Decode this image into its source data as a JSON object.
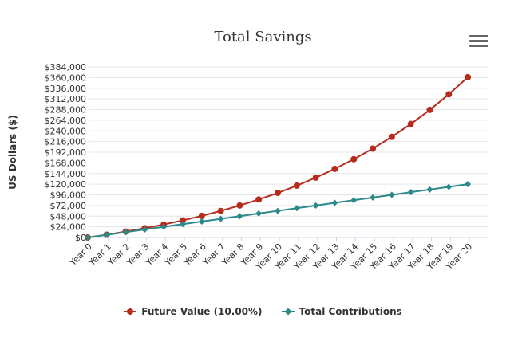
{
  "chart_data": {
    "type": "line",
    "title": "Total Savings",
    "ylabel": "US Dollars ($)",
    "xlabel": "",
    "categories": [
      "Year 0",
      "Year 1",
      "Year 2",
      "Year 3",
      "Year 4",
      "Year 5",
      "Year 6",
      "Year 7",
      "Year 8",
      "Year 9",
      "Year 10",
      "Year 11",
      "Year 12",
      "Year 13",
      "Year 14",
      "Year 15",
      "Year 16",
      "Year 17",
      "Year 18",
      "Year 19",
      "Year 20"
    ],
    "y_ticks": [
      0,
      24000,
      48000,
      72000,
      96000,
      120000,
      144000,
      168000,
      192000,
      216000,
      240000,
      264000,
      288000,
      312000,
      336000,
      360000,
      384000
    ],
    "y_tick_labels": [
      "$0",
      "$24,000",
      "$48,000",
      "$72,000",
      "$96,000",
      "$120,000",
      "$144,000",
      "$168,000",
      "$192,000",
      "$216,000",
      "$240,000",
      "$264,000",
      "$288,000",
      "$312,000",
      "$336,000",
      "$360,000",
      "$384,000"
    ],
    "ylim": [
      0,
      384000
    ],
    "grid": true,
    "legend_position": "bottom",
    "series": [
      {
        "name": "Future Value (10.00%)",
        "color": "#b52b1c",
        "marker": "circle",
        "values": [
          0,
          6300,
          13230,
          20853,
          29238,
          38462,
          48608,
          59769,
          72046,
          85551,
          100406,
          116746,
          134721,
          154493,
          176242,
          200166,
          226483,
          255431,
          287274,
          322301,
          360831
        ]
      },
      {
        "name": "Total Contributions",
        "color": "#2a8a8a",
        "marker": "diamond",
        "values": [
          0,
          6000,
          12000,
          18000,
          24000,
          30000,
          36000,
          42000,
          48000,
          54000,
          60000,
          66000,
          72000,
          78000,
          84000,
          90000,
          96000,
          102000,
          108000,
          114000,
          120000
        ]
      }
    ]
  },
  "icons": {
    "menu": "hamburger-menu-icon"
  }
}
